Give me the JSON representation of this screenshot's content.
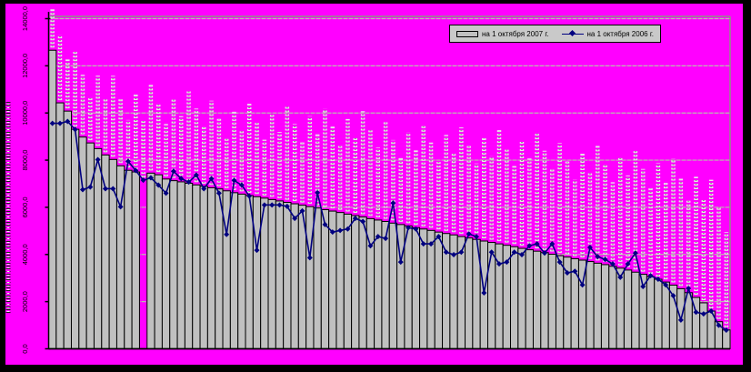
{
  "window": {
    "title": ""
  },
  "colors": {
    "background": "#ff00ff",
    "frame": "#000000",
    "bar_fill": "#c0c0c0",
    "bar_border": "#000000",
    "line": "#000080",
    "gridline": "#b9b9ae",
    "plot_border": "#8f8f85",
    "axis": "#000000",
    "legend_bg": "#c9c9c9",
    "label_strip_light": "#e8e8e8",
    "label_strip_dark": "#8f8f8f"
  },
  "legend": {
    "items": [
      {
        "swatch": "bar-swatch",
        "label": "на 1 октября 2007 г."
      },
      {
        "swatch": "line-swatch",
        "label": "на 1 октября 2006 г."
      }
    ]
  },
  "y_axis": {
    "tick_labels_top_to_bottom": [
      "14000,0",
      "12000,0",
      "10000,0",
      "8000,0",
      "6000,0",
      "4000,0",
      "2000,0",
      "0,0"
    ],
    "max": 14000,
    "min": 0,
    "step": 2000,
    "title_present": true,
    "title_legible": false
  },
  "x_axis": {
    "category_labels_visible": false,
    "bar_value_labels_rotated_above_bars": true,
    "bar_value_labels_legible": false
  },
  "chart_data": {
    "type": "bar",
    "title": "",
    "xlabel": "",
    "ylabel": "",
    "ylim": [
      0,
      14400
    ],
    "grid": true,
    "legend_position": "top-center",
    "categories_count": 90,
    "series": [
      {
        "name": "на 1 октября 2007 г.",
        "kind": "bar",
        "values": [
          12660,
          10430,
          10080,
          9310,
          8980,
          8730,
          8490,
          8220,
          8030,
          7760,
          7570,
          7500,
          null,
          7450,
          7380,
          7200,
          7130,
          7080,
          7020,
          6950,
          6890,
          6830,
          6780,
          6700,
          6620,
          6560,
          6500,
          6450,
          6390,
          6330,
          6270,
          6210,
          6150,
          6090,
          6030,
          5970,
          5900,
          5840,
          5780,
          5710,
          5650,
          5590,
          5520,
          5460,
          5400,
          5330,
          5270,
          5210,
          5140,
          5080,
          5020,
          4950,
          4890,
          4830,
          4760,
          4700,
          4640,
          4570,
          4510,
          4450,
          4390,
          4330,
          4260,
          4200,
          4140,
          4080,
          4010,
          3950,
          3890,
          3820,
          3760,
          3700,
          3630,
          3570,
          3500,
          3420,
          3340,
          3250,
          3160,
          3060,
          2950,
          2830,
          2700,
          2550,
          2380,
          2180,
          1950,
          1600,
          1150,
          800
        ]
      },
      {
        "name": "на 1 октября 2006 г.",
        "kind": "line",
        "values": [
          9560,
          9560,
          9640,
          9300,
          6750,
          6860,
          8020,
          6790,
          6790,
          6020,
          7950,
          7560,
          7150,
          7250,
          6940,
          6600,
          7530,
          7220,
          7070,
          7370,
          6790,
          7210,
          6600,
          4850,
          7140,
          6940,
          6480,
          4180,
          6100,
          6100,
          6100,
          6040,
          5530,
          5850,
          3860,
          6620,
          5270,
          4950,
          5020,
          5080,
          5530,
          5400,
          4370,
          4760,
          4680,
          6180,
          3680,
          5140,
          5080,
          4450,
          4450,
          4760,
          4100,
          3990,
          4100,
          4870,
          4760,
          2370,
          4100,
          3600,
          3680,
          4100,
          3990,
          4370,
          4450,
          4060,
          4450,
          3680,
          3220,
          3290,
          2710,
          4300,
          3910,
          3790,
          3600,
          3030,
          3600,
          4060,
          2640,
          3100,
          2950,
          2710,
          2250,
          1220,
          2560,
          1550,
          1480,
          1600,
          1000,
          790
        ]
      }
    ]
  }
}
